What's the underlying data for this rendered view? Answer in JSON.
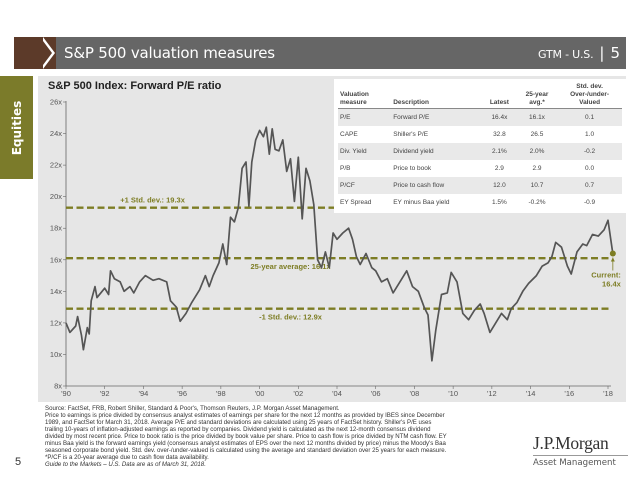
{
  "header": {
    "title": "S&P 500 valuation measures",
    "gtm_label": "GTM - U.S.",
    "separator": "|",
    "page_number": "5"
  },
  "side_tab": {
    "label": "Equities"
  },
  "colors": {
    "header_bg": "#666666",
    "header_accent": "#5c3a29",
    "side_tab": "#7b7b2a",
    "reference_lines": "#7d7d24",
    "series_line": "#555555",
    "panel_bg": "#e6e6e6"
  },
  "chart_data": {
    "type": "line",
    "title": "S&P 500 Index: Forward P/E ratio",
    "xlabel": "",
    "ylabel": "",
    "ylim": [
      8,
      26
    ],
    "xlim": [
      1990,
      2018.3
    ],
    "y_ticks": [
      8,
      10,
      12,
      14,
      16,
      18,
      20,
      22,
      24,
      26
    ],
    "y_tick_labels": [
      "8x",
      "10x",
      "12x",
      "14x",
      "16x",
      "18x",
      "20x",
      "22x",
      "24x",
      "26x"
    ],
    "x_ticks": [
      1990,
      1992,
      1994,
      1996,
      1998,
      2000,
      2002,
      2004,
      2006,
      2008,
      2010,
      2012,
      2014,
      2016,
      2018
    ],
    "x_tick_labels": [
      "'90",
      "'92",
      "'94",
      "'96",
      "'98",
      "'00",
      "'02",
      "'04",
      "'06",
      "'08",
      "'10",
      "'12",
      "'14",
      "'16",
      "'18"
    ],
    "grid": false,
    "series": [
      {
        "name": "Forward P/E",
        "x": [
          1990.0,
          1990.2,
          1990.5,
          1990.6,
          1990.8,
          1990.9,
          1991.1,
          1991.2,
          1991.3,
          1991.5,
          1991.6,
          1992.0,
          1992.2,
          1992.3,
          1992.5,
          1992.8,
          1993.0,
          1993.3,
          1993.5,
          1993.8,
          1994.1,
          1994.5,
          1994.8,
          1995.2,
          1995.4,
          1995.7,
          1995.9,
          1996.2,
          1996.5,
          1996.9,
          1997.2,
          1997.4,
          1997.6,
          1997.9,
          1998.1,
          1998.3,
          1998.5,
          1998.7,
          1998.9,
          1999.1,
          1999.3,
          1999.45,
          1999.6,
          1999.8,
          2000.0,
          2000.2,
          2000.35,
          2000.5,
          2000.65,
          2000.8,
          2001.0,
          2001.2,
          2001.4,
          2001.6,
          2001.8,
          2002.0,
          2002.2,
          2002.4,
          2002.6,
          2002.8,
          2003.0,
          2003.2,
          2003.4,
          2003.6,
          2003.8,
          2004.0,
          2004.3,
          2004.6,
          2004.8,
          2005.0,
          2005.2,
          2005.5,
          2005.8,
          2006.0,
          2006.3,
          2006.6,
          2006.9,
          2007.3,
          2007.6,
          2007.9,
          2008.2,
          2008.5,
          2008.7,
          2008.9,
          2009.1,
          2009.4,
          2009.7,
          2009.9,
          2010.2,
          2010.5,
          2010.8,
          2011.1,
          2011.4,
          2011.6,
          2011.9,
          2012.2,
          2012.5,
          2012.8,
          2013.0,
          2013.3,
          2013.6,
          2013.9,
          2014.3,
          2014.6,
          2014.9,
          2015.1,
          2015.3,
          2015.6,
          2015.9,
          2016.1,
          2016.4,
          2016.7,
          2016.9,
          2017.2,
          2017.5,
          2017.8,
          2018.0,
          2018.25
        ],
        "values": [
          12.0,
          11.4,
          11.8,
          12.4,
          11.2,
          10.3,
          11.7,
          11.3,
          13.4,
          14.3,
          13.6,
          14.2,
          13.8,
          15.3,
          14.8,
          14.6,
          14.0,
          14.3,
          13.9,
          14.6,
          15.0,
          14.7,
          14.8,
          14.6,
          13.4,
          13.0,
          12.1,
          12.6,
          13.3,
          14.1,
          15.0,
          14.3,
          15.0,
          15.8,
          17.0,
          15.7,
          18.7,
          18.4,
          19.3,
          21.8,
          22.2,
          19.4,
          22.2,
          23.6,
          24.2,
          23.8,
          24.4,
          22.7,
          24.3,
          23.0,
          22.9,
          23.6,
          21.6,
          22.4,
          19.7,
          22.5,
          18.6,
          21.8,
          21.0,
          19.5,
          16.0,
          15.5,
          16.5,
          15.5,
          17.7,
          17.3,
          17.7,
          18.0,
          17.3,
          16.2,
          15.7,
          16.4,
          15.5,
          15.3,
          14.6,
          14.8,
          13.9,
          14.7,
          15.3,
          14.3,
          14.0,
          13.0,
          12.5,
          9.6,
          11.5,
          13.8,
          13.9,
          15.2,
          14.6,
          12.6,
          12.2,
          12.8,
          13.2,
          12.6,
          11.4,
          12.0,
          12.6,
          12.2,
          12.9,
          13.3,
          14.0,
          14.5,
          15.0,
          15.6,
          15.8,
          16.2,
          17.1,
          16.8,
          15.6,
          15.1,
          16.5,
          17.0,
          16.9,
          17.6,
          17.5,
          17.9,
          18.5,
          16.4
        ]
      }
    ],
    "reference_lines": [
      {
        "label": "+1 Std. dev.: 19.3x",
        "value": 19.3
      },
      {
        "label": "25-year average: 16.1x",
        "value": 16.1
      },
      {
        "label": "-1 Std. dev.: 12.9x",
        "value": 12.9
      }
    ],
    "annotation": {
      "label_line1": "Current:",
      "label_line2": "16.4x",
      "x": 2018.25,
      "value": 16.4
    }
  },
  "table": {
    "headers": {
      "measure": [
        "Valuation",
        "measure"
      ],
      "description": "Description",
      "latest": "Latest",
      "avg": [
        "25-year",
        "avg.*"
      ],
      "stddev": [
        "Std. dev.",
        "Over-/under-",
        "Valued"
      ]
    },
    "rows": [
      {
        "measure": "P/E",
        "description": "Forward P/E",
        "latest": "16.4x",
        "avg": "16.1x",
        "stddev": "0.1"
      },
      {
        "measure": "CAPE",
        "description": "Shiller's P/E",
        "latest": "32.8",
        "avg": "26.5",
        "stddev": "1.0"
      },
      {
        "measure": "Div. Yield",
        "description": "Dividend yield",
        "latest": "2.1%",
        "avg": "2.0%",
        "stddev": "-0.2"
      },
      {
        "measure": "P/B",
        "description": "Price to book",
        "latest": "2.9",
        "avg": "2.9",
        "stddev": "0.0"
      },
      {
        "measure": "P/CF",
        "description": "Price to cash flow",
        "latest": "12.0",
        "avg": "10.7",
        "stddev": "0.7"
      },
      {
        "measure": "EY Spread",
        "description": "EY minus Baa yield",
        "latest": "1.5%",
        "avg": "-0.2%",
        "stddev": "-0.9"
      }
    ]
  },
  "footnote": {
    "lines": [
      "Source: FactSet, FRB, Robert Shiller, Standard & Poor's, Thomson Reuters, J.P. Morgan Asset Management.",
      "Price to earnings is price divided by consensus analyst estimates of earnings per share for the next 12 months as provided by IBES since December",
      "1989, and FactSet for March 31, 2018. Average P/E and standard deviations are calculated using 25 years of FactSet history. Shiller's P/E uses",
      "trailing 10-years of inflation-adjusted earnings as reported by companies. Dividend yield is calculated as the next 12-month consensus dividend",
      "divided by most recent price. Price to book ratio is the price divided by book value per share. Price to cash flow is price divided by NTM cash flow. EY",
      "minus Baa yield is the forward earnings yield (consensus analyst estimates of EPS over the next 12 months divided by price) minus the Moody's Baa",
      "seasoned corporate bond yield. Std. dev. over-/under-valued is calculated using the average and standard deviation over 25 years for each measure.",
      "*P/CF is a 20-year average due to cash flow data availability."
    ],
    "last_line": "Guide to the Markets – U.S. Data are as of March 31, 2018."
  },
  "page_number": "5",
  "logo": {
    "name": "J.P.Morgan",
    "sub": "Asset Management"
  }
}
